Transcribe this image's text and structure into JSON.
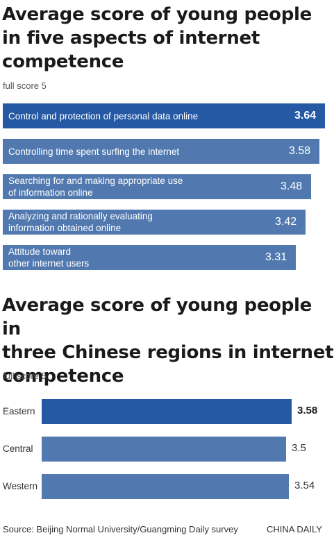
{
  "chart_data": [
    {
      "type": "bar",
      "orientation": "horizontal",
      "title": "Average score of young people\nin five aspects of internet\ncompetence",
      "note": "full score 5",
      "categories": [
        "Control and protection of personal data online",
        "Controlling time spent surfing the internet",
        "Searching for and making appropriate use\nof information online",
        "Analyzing and rationally evaluating\ninformation obtained online",
        "Attitude toward\nother internet users"
      ],
      "values": [
        3.64,
        3.58,
        3.48,
        3.42,
        3.31
      ],
      "value_labels": [
        "3.64",
        "3.58",
        "3.48",
        "3.42",
        "3.31"
      ],
      "highlight_index": 0,
      "colors": {
        "highlight": "#2559a4",
        "default": "#5179b0"
      }
    },
    {
      "type": "bar",
      "orientation": "horizontal",
      "title": "Average score of young people in\nthree Chinese regions in internet\ncompetence",
      "note": "full score 5",
      "categories": [
        "Eastern",
        "Central",
        "Western"
      ],
      "values": [
        3.58,
        3.5,
        3.54
      ],
      "value_labels": [
        "3.58",
        "3.5",
        "3.54"
      ],
      "highlight_index": 0,
      "colors": {
        "highlight": "#2559a4",
        "default": "#5179b0"
      }
    }
  ],
  "footer": {
    "source": "Source: Beijing Normal University/Guangming Daily survey",
    "credit": "CHINA DAILY"
  }
}
